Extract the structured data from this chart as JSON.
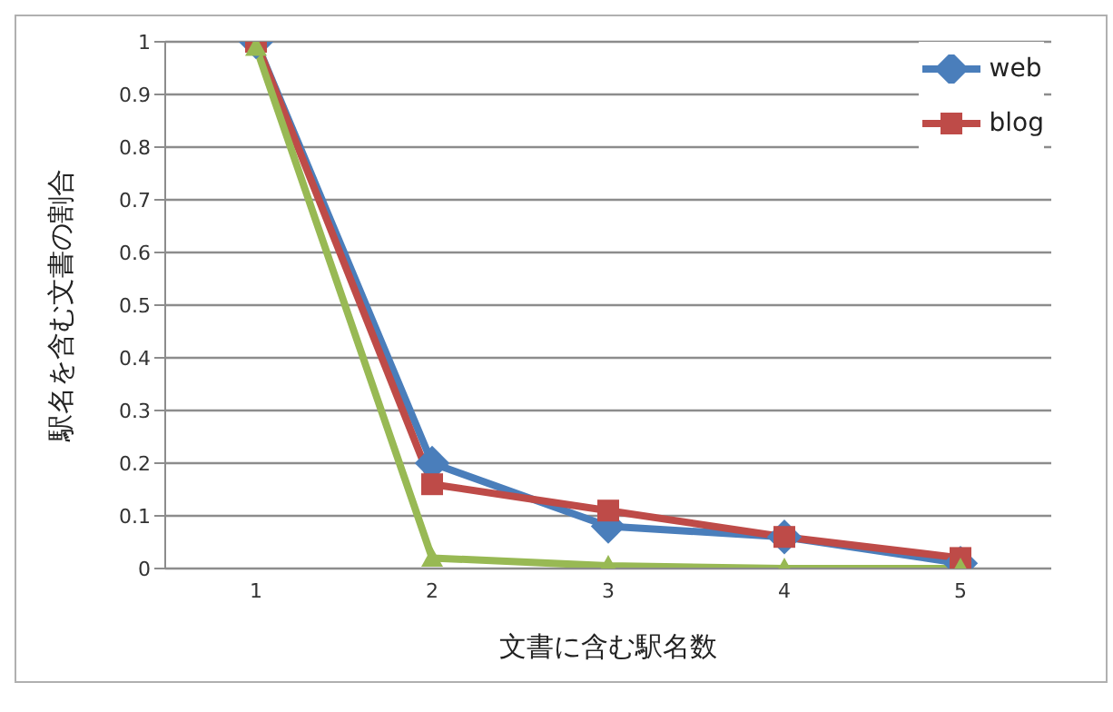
{
  "chart_data": {
    "type": "line",
    "xlabel": "文書に含む駅名数",
    "ylabel": "駅名を含む文書の割合",
    "categories": [
      "1",
      "2",
      "3",
      "4",
      "5"
    ],
    "series": [
      {
        "name": "web",
        "color": "#4a7ebb",
        "marker": "diamond",
        "values": [
          1,
          0.2,
          0.08,
          0.06,
          0.01
        ]
      },
      {
        "name": "blog",
        "color": "#be4b48",
        "marker": "square",
        "values": [
          1,
          0.16,
          0.11,
          0.06,
          0.02
        ]
      },
      {
        "color": "#98b954",
        "marker": "triangle",
        "values": [
          0.99,
          0.02,
          0.005,
          0,
          0
        ]
      }
    ],
    "ylim": [
      0,
      1
    ],
    "yticks": [
      0,
      0.1,
      0.2,
      0.3,
      0.4,
      0.5,
      0.6,
      0.7,
      0.8,
      0.9,
      1
    ],
    "grid": "y",
    "legend": "top right",
    "line_style": "solid"
  }
}
